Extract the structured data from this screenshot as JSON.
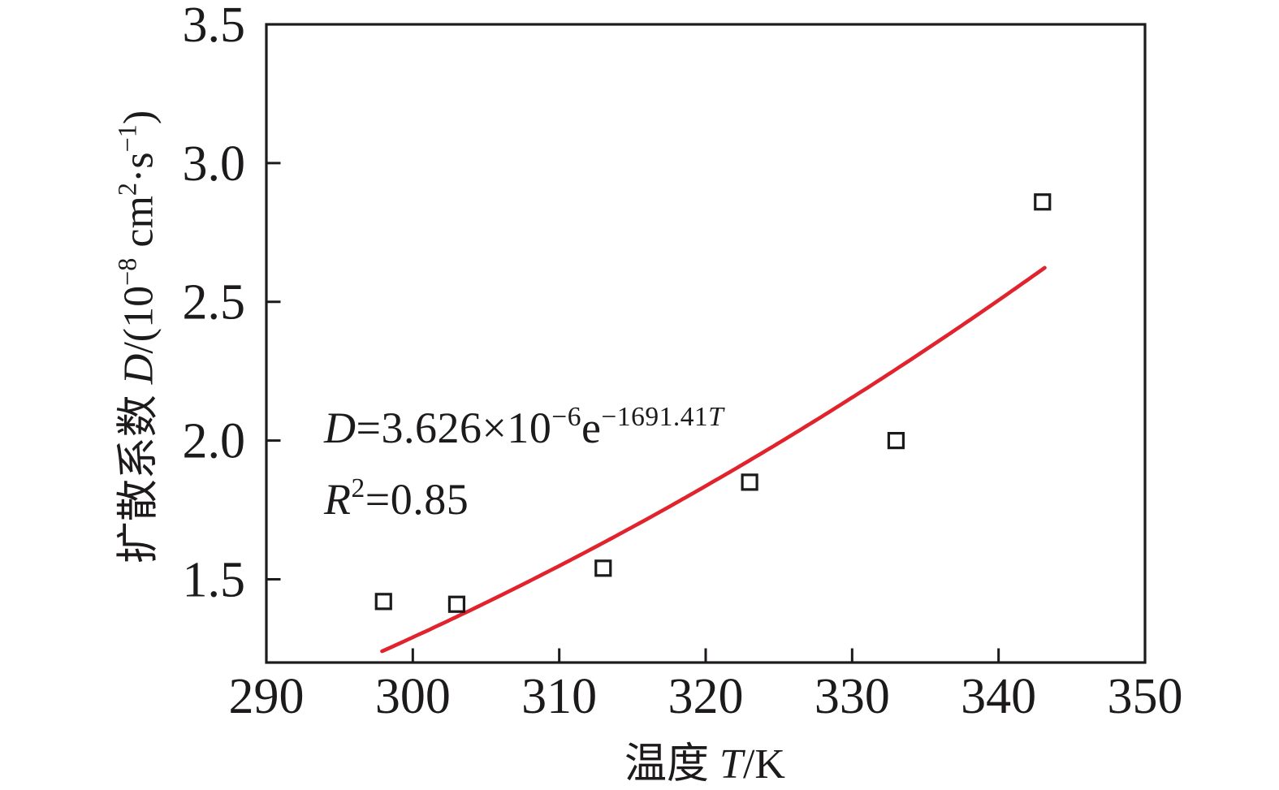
{
  "figure": {
    "background": "#ffffff"
  },
  "axes": {
    "xlabel_segments": [
      {
        "t": "温度 "
      },
      {
        "t": "T",
        "s": "i"
      },
      {
        "t": "/K"
      }
    ],
    "ylabel_segments": [
      {
        "t": "扩散系数 "
      },
      {
        "t": "D",
        "s": "i"
      },
      {
        "t": "/(10"
      },
      {
        "t": "−8",
        "s": "sup"
      },
      {
        "t": " cm"
      },
      {
        "t": "2",
        "s": "sup"
      },
      {
        "t": "·s"
      },
      {
        "t": "−1",
        "s": "sup"
      },
      {
        "t": ")"
      }
    ]
  },
  "annotation": {
    "equation_segments": [
      {
        "t": "D",
        "s": "i"
      },
      {
        "t": "=3.626×10"
      },
      {
        "t": "−6",
        "s": "sup"
      },
      {
        "t": "e"
      },
      {
        "t": "−1691.41",
        "s": "sup"
      },
      {
        "t": "T",
        "s": "supi"
      }
    ],
    "r2_segments": [
      {
        "t": "R",
        "s": "i"
      },
      {
        "t": "2",
        "s": "sup"
      },
      {
        "t": "=0.85"
      }
    ]
  },
  "chart_data": {
    "type": "scatter",
    "title": "",
    "xlabel": "温度 T/K",
    "ylabel": "扩散系数 D/(10⁻⁸ cm²·s⁻¹)",
    "xlim": [
      290,
      350
    ],
    "ylim": [
      1.2,
      3.5
    ],
    "xticks": [
      290,
      300,
      310,
      320,
      330,
      340,
      350
    ],
    "ytick_labels": [
      "1.5",
      "2.0",
      "2.5",
      "3.0",
      "3.5"
    ],
    "grid": false,
    "legend": false,
    "marker": "open-square",
    "points": [
      [
        298,
        1.42
      ],
      [
        303,
        1.41
      ],
      [
        313,
        1.54
      ],
      [
        323,
        1.85
      ],
      [
        333,
        2.0
      ],
      [
        343,
        2.86
      ]
    ],
    "annotations": [
      "D=3.626×10^(−6)e^(−1691.41T)",
      "R²=0.85"
    ],
    "fit_curve": {
      "D0": 3.626e-06,
      "exp_coef": -1691.4,
      "display_scale": 100000000,
      "T_start": 297.9,
      "T_end": 343.3
    },
    "colors": {
      "curve": "#e0232d",
      "axis": "#1d1a1b",
      "marker": "#1d1a1b",
      "text": "#1d1a1b"
    }
  }
}
